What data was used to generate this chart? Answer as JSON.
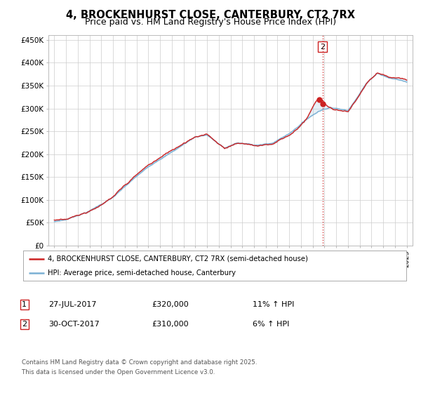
{
  "title": "4, BROCKENHURST CLOSE, CANTERBURY, CT2 7RX",
  "subtitle": "Price paid vs. HM Land Registry's House Price Index (HPI)",
  "yticks": [
    0,
    50000,
    100000,
    150000,
    200000,
    250000,
    300000,
    350000,
    400000,
    450000
  ],
  "ytick_labels": [
    "£0",
    "£50K",
    "£100K",
    "£150K",
    "£200K",
    "£250K",
    "£300K",
    "£350K",
    "£400K",
    "£450K"
  ],
  "ylim": [
    0,
    460000
  ],
  "hpi_color": "#7ab0d4",
  "price_color": "#cc2222",
  "dashed_line_color": "#cc2222",
  "sale1_year": 2017.57,
  "sale2_year": 2017.83,
  "sale1_price": 320000,
  "sale2_price": 310000,
  "legend_label_price": "4, BROCKENHURST CLOSE, CANTERBURY, CT2 7RX (semi-detached house)",
  "legend_label_hpi": "HPI: Average price, semi-detached house, Canterbury",
  "note1_label": "1",
  "note1_date": "27-JUL-2017",
  "note1_price": "£320,000",
  "note1_hpi": "11% ↑ HPI",
  "note2_label": "2",
  "note2_date": "30-OCT-2017",
  "note2_price": "£310,000",
  "note2_hpi": "6% ↑ HPI",
  "footnote": "Contains HM Land Registry data © Crown copyright and database right 2025.\nThis data is licensed under the Open Government Licence v3.0.",
  "background_color": "#ffffff",
  "grid_color": "#cccccc",
  "title_fontsize": 10.5,
  "subtitle_fontsize": 9,
  "tick_fontsize": 7.5
}
